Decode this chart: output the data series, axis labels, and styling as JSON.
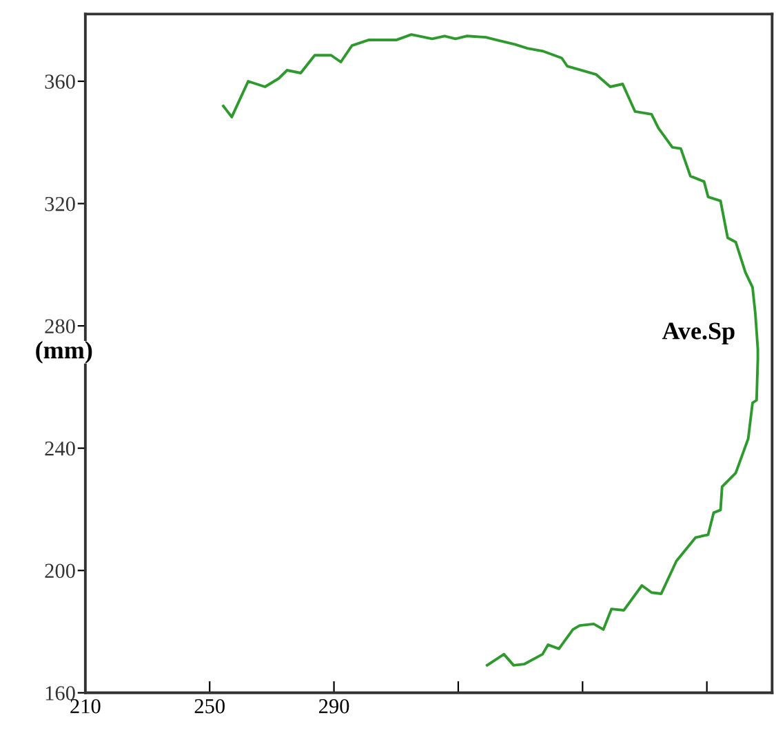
{
  "chart_data": {
    "type": "line",
    "xlim": [
      210,
      431
    ],
    "ylim": [
      160,
      382
    ],
    "xticks": [
      210,
      250,
      290,
      {
        "value": 330,
        "label": null
      },
      {
        "value": 370,
        "label": null
      },
      {
        "value": 410,
        "label": null
      }
    ],
    "yticks": [
      160,
      200,
      240,
      280,
      320,
      360
    ],
    "grid": false,
    "marker": "none",
    "line_style": "solid",
    "annotations": [
      "(mm)",
      "Ave.Sp"
    ],
    "series": [
      {
        "color": "#2e9a2e",
        "x": [
          254.4,
          257.1,
          262.4,
          267.8,
          272.2,
          274.9,
          279.3,
          283.8,
          289.1,
          292.2,
          295.8,
          301.1,
          310.0,
          314.9,
          321.6,
          325.6,
          329.1,
          332.7,
          338.9,
          342.4,
          348.2,
          352.2,
          357.1,
          363.3,
          365.1,
          371.3,
          374.4,
          378.9,
          382.9,
          386.9,
          392.2,
          394.4,
          398.9,
          401.6,
          404.7,
          409.1,
          410.4,
          414.4,
          416.7,
          419.3,
          422.4,
          424.7,
          425.6,
          426.4,
          426.4,
          426.0,
          424.7,
          423.3,
          419.3,
          414.9,
          414.4,
          412.2,
          410.4,
          406.4,
          400.2,
          395.3,
          392.2,
          389.1,
          383.3,
          379.3,
          376.7,
          373.6,
          369.1,
          366.9,
          362.4,
          358.9,
          357.1,
          351.3,
          347.8,
          344.7,
          339.3
        ],
        "values": [
          351.9,
          348.3,
          360.0,
          358.2,
          360.9,
          363.6,
          362.7,
          368.5,
          368.5,
          366.3,
          371.7,
          373.5,
          373.5,
          375.3,
          373.9,
          374.8,
          373.9,
          374.8,
          374.4,
          373.5,
          372.1,
          370.8,
          369.9,
          367.6,
          364.9,
          363.1,
          362.2,
          358.2,
          359.1,
          350.1,
          349.2,
          344.7,
          338.4,
          338.0,
          329.0,
          327.2,
          322.2,
          320.9,
          308.8,
          307.4,
          297.5,
          292.6,
          284.0,
          272.4,
          269.2,
          255.7,
          254.8,
          243.1,
          231.9,
          227.4,
          219.8,
          218.9,
          211.7,
          210.8,
          203.1,
          192.4,
          192.8,
          195.1,
          187.0,
          187.4,
          180.7,
          182.5,
          182.0,
          180.7,
          174.4,
          175.7,
          172.6,
          169.4,
          169.0,
          172.6,
          169.0
        ]
      }
    ]
  }
}
